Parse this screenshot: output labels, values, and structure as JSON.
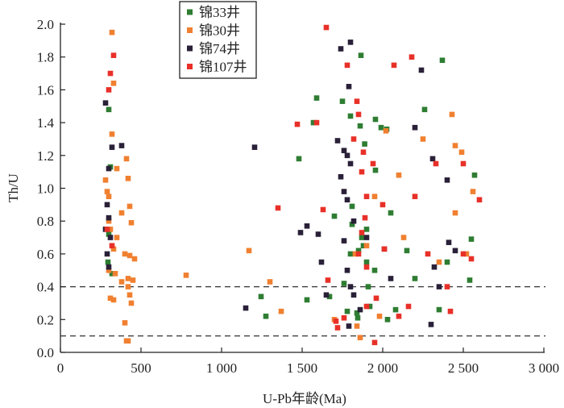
{
  "chart_data": {
    "type": "scatter",
    "title": "",
    "xlabel": "U-Pb年龄(Ma)",
    "ylabel": "Th/U",
    "xlim": [
      0,
      3000
    ],
    "ylim": [
      0,
      2.0
    ],
    "xticks": [
      0,
      500,
      1000,
      1500,
      2000,
      2500,
      3000
    ],
    "xtick_labels": [
      "0",
      "500",
      "1 000",
      "1 500",
      "2 000",
      "2 500",
      "3 000"
    ],
    "yticks": [
      0,
      0.2,
      0.4,
      0.6,
      0.8,
      1.0,
      1.2,
      1.4,
      1.6,
      1.8,
      2.0
    ],
    "ytick_labels": [
      "0.0",
      "0.2",
      "0.4",
      "0.6",
      "0.8",
      "1.0",
      "1.2",
      "1.4",
      "1.6",
      "1.8",
      "2.0"
    ],
    "reference_lines": [
      0.4,
      0.1
    ],
    "grid": false,
    "legend_position": "top-center",
    "series": [
      {
        "name": "锦33井",
        "color": "#2e7d32",
        "points": [
          [
            300,
            1.48
          ],
          [
            310,
            1.13
          ],
          [
            300,
            0.72
          ],
          [
            295,
            0.55
          ],
          [
            320,
            0.48
          ],
          [
            1245,
            0.34
          ],
          [
            1275,
            0.22
          ],
          [
            1480,
            1.18
          ],
          [
            1530,
            0.32
          ],
          [
            1570,
            1.4
          ],
          [
            1590,
            1.55
          ],
          [
            1670,
            0.34
          ],
          [
            1700,
            0.83
          ],
          [
            1750,
            1.53
          ],
          [
            1780,
            0.25
          ],
          [
            1800,
            1.44
          ],
          [
            1810,
            0.89
          ],
          [
            1810,
            0.78
          ],
          [
            1840,
            0.24
          ],
          [
            1845,
            0.21
          ],
          [
            1860,
            1.38
          ],
          [
            1865,
            1.81
          ],
          [
            1870,
            0.7
          ],
          [
            1880,
            0.65
          ],
          [
            1888,
            1.27
          ],
          [
            1900,
            0.55
          ],
          [
            1910,
            0.4
          ],
          [
            1920,
            0.28
          ],
          [
            1955,
            1.42
          ],
          [
            1955,
            1.11
          ],
          [
            1990,
            1.37
          ],
          [
            2025,
            1.36
          ],
          [
            2030,
            0.2
          ],
          [
            2080,
            0.26
          ],
          [
            2050,
            0.85
          ],
          [
            2150,
            0.62
          ],
          [
            2260,
            1.48
          ],
          [
            2350,
            0.26
          ],
          [
            2370,
            1.78
          ],
          [
            2550,
            0.69
          ],
          [
            2570,
            1.08
          ],
          [
            2540,
            0.44
          ],
          [
            2400,
            0.55
          ],
          [
            2200,
            0.45
          ],
          [
            1950,
            0.5
          ],
          [
            1850,
            0.62
          ],
          [
            1800,
            0.6
          ],
          [
            1760,
            0.42
          ],
          [
            1900,
            0.75
          ]
        ]
      },
      {
        "name": "锦30井",
        "color": "#f08030",
        "points": [
          [
            320,
            1.95
          ],
          [
            330,
            1.64
          ],
          [
            320,
            1.33
          ],
          [
            280,
            1.05
          ],
          [
            290,
            0.98
          ],
          [
            300,
            0.95
          ],
          [
            350,
            1.12
          ],
          [
            410,
            1.18
          ],
          [
            420,
            1.06
          ],
          [
            430,
            0.89
          ],
          [
            380,
            0.85
          ],
          [
            440,
            0.79
          ],
          [
            300,
            0.8
          ],
          [
            310,
            0.75
          ],
          [
            350,
            0.7
          ],
          [
            330,
            0.63
          ],
          [
            400,
            0.6
          ],
          [
            430,
            0.59
          ],
          [
            460,
            0.57
          ],
          [
            300,
            0.5
          ],
          [
            340,
            0.48
          ],
          [
            420,
            0.45
          ],
          [
            450,
            0.44
          ],
          [
            380,
            0.43
          ],
          [
            420,
            0.4
          ],
          [
            430,
            0.35
          ],
          [
            310,
            0.33
          ],
          [
            330,
            0.32
          ],
          [
            440,
            0.3
          ],
          [
            400,
            0.18
          ],
          [
            410,
            0.07
          ],
          [
            420,
            0.07
          ],
          [
            780,
            0.47
          ],
          [
            1170,
            0.62
          ],
          [
            1300,
            0.43
          ],
          [
            1370,
            0.25
          ],
          [
            1700,
            0.2
          ],
          [
            1840,
            0.16
          ],
          [
            1860,
            0.09
          ],
          [
            1980,
            0.22
          ],
          [
            1830,
            0.6
          ],
          [
            1900,
            0.65
          ],
          [
            1950,
            0.95
          ],
          [
            2020,
            1.35
          ],
          [
            2100,
            1.08
          ],
          [
            2250,
            1.3
          ],
          [
            2430,
            1.45
          ],
          [
            2450,
            1.26
          ],
          [
            2490,
            1.22
          ],
          [
            2560,
            0.98
          ],
          [
            2450,
            0.85
          ],
          [
            2350,
            0.55
          ],
          [
            2520,
            0.6
          ],
          [
            2130,
            0.7
          ]
        ]
      },
      {
        "name": "锦74井",
        "color": "#2a2038",
        "points": [
          [
            280,
            1.52
          ],
          [
            320,
            1.25
          ],
          [
            380,
            1.26
          ],
          [
            300,
            1.12
          ],
          [
            290,
            0.9
          ],
          [
            300,
            0.82
          ],
          [
            280,
            0.75
          ],
          [
            310,
            0.7
          ],
          [
            290,
            0.6
          ],
          [
            300,
            0.52
          ],
          [
            1150,
            0.27
          ],
          [
            1205,
            1.25
          ],
          [
            1490,
            0.73
          ],
          [
            1530,
            0.77
          ],
          [
            1600,
            0.72
          ],
          [
            1620,
            0.55
          ],
          [
            1650,
            0.35
          ],
          [
            1720,
            1.29
          ],
          [
            1740,
            1.85
          ],
          [
            1800,
            1.89
          ],
          [
            1790,
            1.62
          ],
          [
            1760,
            1.23
          ],
          [
            1780,
            1.2
          ],
          [
            1800,
            1.15
          ],
          [
            1740,
            1.07
          ],
          [
            1760,
            0.98
          ],
          [
            1780,
            0.93
          ],
          [
            1820,
            0.8
          ],
          [
            1760,
            0.68
          ],
          [
            1780,
            0.5
          ],
          [
            1800,
            0.4
          ],
          [
            1820,
            0.35
          ],
          [
            1860,
            0.26
          ],
          [
            1790,
            0.16
          ],
          [
            1900,
            0.7
          ],
          [
            2010,
            0.63
          ],
          [
            2050,
            0.45
          ],
          [
            2200,
            1.37
          ],
          [
            2240,
            1.72
          ],
          [
            2310,
            1.18
          ],
          [
            2320,
            0.52
          ],
          [
            2300,
            0.17
          ],
          [
            2350,
            0.4
          ],
          [
            2400,
            1.05
          ],
          [
            2410,
            0.67
          ],
          [
            2450,
            0.62
          ]
        ]
      },
      {
        "name": "锦107井",
        "color": "#e83028",
        "points": [
          [
            310,
            1.7
          ],
          [
            330,
            1.81
          ],
          [
            300,
            1.6
          ],
          [
            290,
            0.75
          ],
          [
            320,
            0.65
          ],
          [
            1350,
            0.88
          ],
          [
            1470,
            1.39
          ],
          [
            1590,
            1.4
          ],
          [
            1650,
            1.98
          ],
          [
            1630,
            0.87
          ],
          [
            1660,
            0.44
          ],
          [
            1710,
            0.19
          ],
          [
            1720,
            0.15
          ],
          [
            1760,
            0.21
          ],
          [
            1780,
            1.75
          ],
          [
            1820,
            1.3
          ],
          [
            1840,
            1.53
          ],
          [
            1850,
            1.45
          ],
          [
            1870,
            1.1
          ],
          [
            1880,
            1.22
          ],
          [
            1900,
            0.95
          ],
          [
            1890,
            0.82
          ],
          [
            1870,
            0.73
          ],
          [
            1850,
            0.6
          ],
          [
            1900,
            0.52
          ],
          [
            1950,
            0.06
          ],
          [
            1900,
            0.28
          ],
          [
            1960,
            0.33
          ],
          [
            2010,
            0.63
          ],
          [
            2070,
            1.75
          ],
          [
            2100,
            0.22
          ],
          [
            2160,
            0.28
          ],
          [
            2180,
            1.8
          ],
          [
            2200,
            0.95
          ],
          [
            2280,
            0.6
          ],
          [
            2330,
            1.15
          ],
          [
            2420,
            0.25
          ],
          [
            2500,
            0.6
          ],
          [
            2500,
            1.15
          ],
          [
            2600,
            0.93
          ],
          [
            2550,
            0.57
          ],
          [
            2400,
            0.4
          ],
          [
            2000,
            0.9
          ],
          [
            1940,
            1.15
          ]
        ]
      }
    ]
  }
}
